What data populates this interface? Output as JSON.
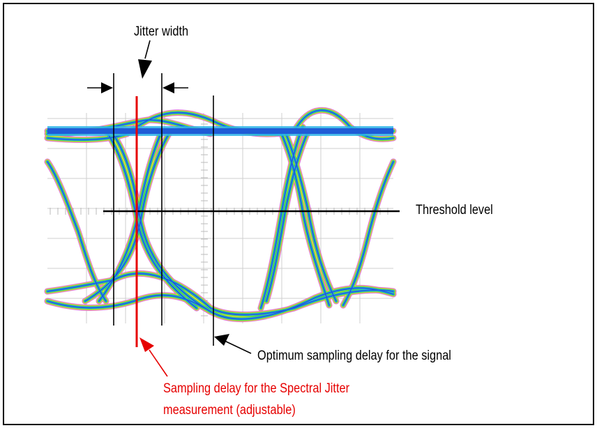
{
  "labels": {
    "jitter_width": "Jitter width",
    "threshold_level": "Threshold level",
    "optimum_sampling": "Optimum sampling delay for the signal",
    "spectral_line1": "Sampling delay for the Spectral Jitter",
    "spectral_line2": "measurement (adjustable)"
  },
  "colors": {
    "spectral_marker": "#e60000",
    "frame": "#000000",
    "grid": "#cfcfcf",
    "eye_blue": "#1f5bd6",
    "eye_cyan": "#2ab4e8",
    "eye_green": "#40d040",
    "eye_yellow": "#e6e633",
    "eye_magenta": "#d050d0"
  },
  "icons": [
    "jitter-width-arrow",
    "left-bracket-arrow",
    "right-bracket-arrow",
    "optimum-pointer-arrow",
    "spectral-pointer-arrow"
  ]
}
